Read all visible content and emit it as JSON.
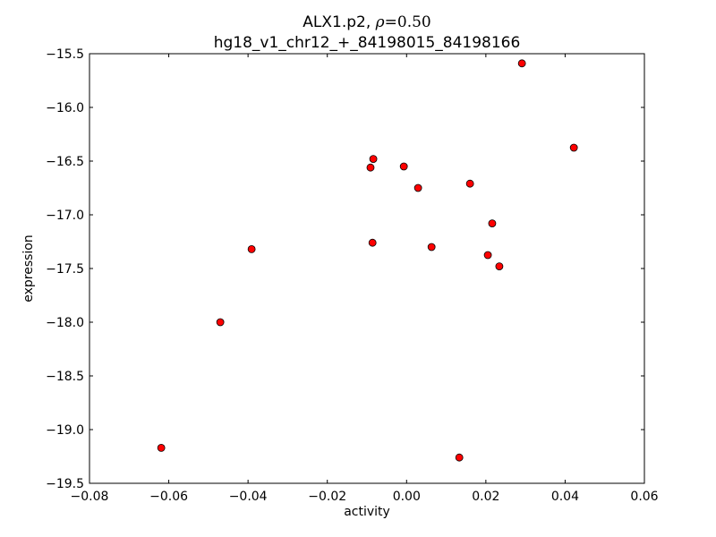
{
  "chart_data": {
    "type": "scatter",
    "title_line1_prefix": "ALX1.p2, ",
    "title_rho_symbol": "ρ",
    "title_rho_value": "=0.50",
    "title_line2": "hg18_v1_chr12_+_84198015_84198166",
    "xlabel": "activity",
    "ylabel": "expression",
    "xlim": [
      -0.08,
      0.06
    ],
    "ylim": [
      -19.5,
      -15.5
    ],
    "xticks": [
      -0.08,
      -0.06,
      -0.04,
      -0.02,
      0.0,
      0.02,
      0.04,
      0.06
    ],
    "xtick_labels": [
      "−0.08",
      "−0.06",
      "−0.04",
      "−0.02",
      "0.00",
      "0.02",
      "0.04",
      "0.06"
    ],
    "yticks": [
      -15.5,
      -16.0,
      -16.5,
      -17.0,
      -17.5,
      -18.0,
      -18.5,
      -19.0,
      -19.5
    ],
    "ytick_labels": [
      "−15.5",
      "−16.0",
      "−16.5",
      "−17.0",
      "−17.5",
      "−18.0",
      "−18.5",
      "−19.0",
      "−19.5"
    ],
    "grid": false,
    "marker_color": "#ff0000",
    "points": [
      {
        "x": 0.0291,
        "y": -15.59
      },
      {
        "x": 0.0422,
        "y": -16.375
      },
      {
        "x": -0.0084,
        "y": -16.48
      },
      {
        "x": -0.0091,
        "y": -16.56
      },
      {
        "x": -0.0007,
        "y": -16.55
      },
      {
        "x": 0.0029,
        "y": -16.75
      },
      {
        "x": 0.016,
        "y": -16.71
      },
      {
        "x": 0.0216,
        "y": -17.08
      },
      {
        "x": -0.0086,
        "y": -17.26
      },
      {
        "x": 0.0063,
        "y": -17.3
      },
      {
        "x": -0.0391,
        "y": -17.32
      },
      {
        "x": 0.0205,
        "y": -17.375
      },
      {
        "x": 0.0234,
        "y": -17.48
      },
      {
        "x": -0.047,
        "y": -18.0
      },
      {
        "x": -0.0619,
        "y": -19.17
      },
      {
        "x": 0.0133,
        "y": -19.26
      }
    ]
  }
}
